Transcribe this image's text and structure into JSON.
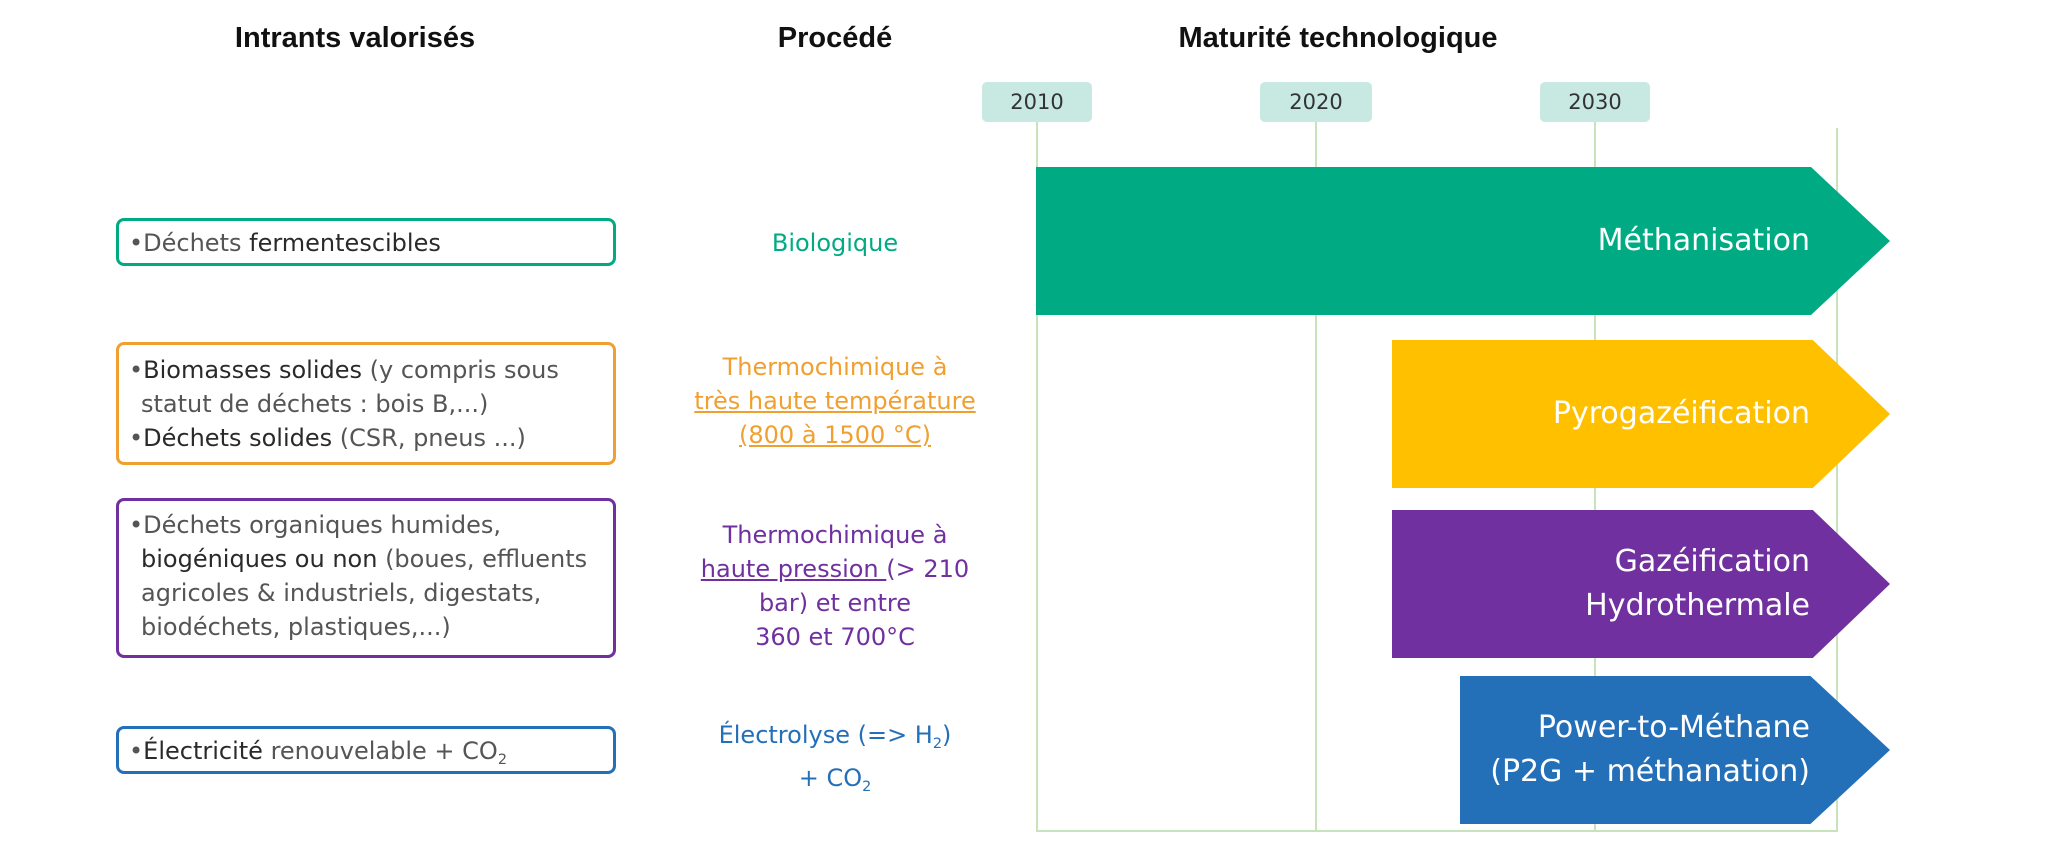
{
  "headers": {
    "inputs": "Intrants valorisés",
    "process": "Procédé",
    "maturity": "Maturité technologique"
  },
  "years": [
    "2010",
    "2020",
    "2030"
  ],
  "colors": {
    "green": "#00ab84",
    "orange": "#f0a030",
    "purple": "#7030a0",
    "blue": "#2470b8",
    "yellow": "#ffc000",
    "grid": "#c6e3bb",
    "year_box": "#c8e8e2"
  },
  "rows": [
    {
      "input": {
        "bullet": "•",
        "plain1": "Déchets ",
        "bold1": "fermentescibles"
      },
      "process": "Biologique",
      "technology": {
        "line1": "Méthanisation"
      }
    },
    {
      "input": {
        "bullet1": "•",
        "bold1": "Biomasses solides",
        "plain1": " (y compris sous",
        "plain2": "statut de déchets : bois B,...)",
        "bullet2": "•",
        "bold2": "Déchets solides",
        "plain3": " (CSR, pneus ...)"
      },
      "process": {
        "line1": "Thermochimique à",
        "line2": "très haute température",
        "line3": "(800 à 1500 °C)"
      },
      "technology": {
        "line1": "Pyrogazéification"
      }
    },
    {
      "input": {
        "bullet": "•",
        "plain1": "Déchets organiques humides,",
        "bold1": "biogéniques ou non",
        "plain2": " (boues, effluents",
        "plain3": "agricoles & industriels, digestats,",
        "plain4": "biodéchets, plastiques,...)"
      },
      "process": {
        "line1": "Thermochimique à",
        "underlined": "haute pression ",
        "line2_rest": "(> 210",
        "line3": "bar) et entre",
        "line4": "360 et 700°C"
      },
      "technology": {
        "line1": "Gazéification",
        "line2": "Hydrothermale"
      }
    },
    {
      "input": {
        "bullet": "•",
        "bold1": "Électricité",
        "plain1": " renouvelable + CO",
        "sub": "2"
      },
      "process": {
        "line1_a": "Électrolyse (=> H",
        "line1_sub": "2",
        "line1_b": ")",
        "line2_a": "+ CO",
        "line2_sub": "2"
      },
      "technology": {
        "line1": "Power-to-Méthane",
        "line2": "(P2G + méthanation)"
      }
    }
  ]
}
